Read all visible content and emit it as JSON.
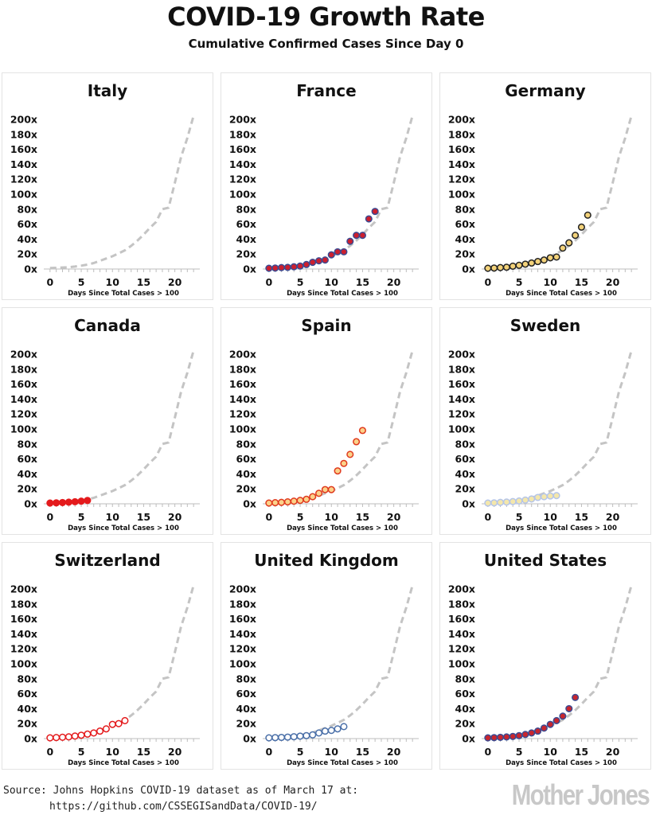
{
  "title": "COVID-19 Growth Rate",
  "subtitle": "Cumulative Confirmed Cases Since Day 0",
  "source": {
    "line1": "Source: Johns Hopkins COVID-19 dataset as of March 17 at:",
    "line2": "https://github.com/CSSEGISandData/COVID-19/"
  },
  "brand": "Mother Jones",
  "chart_data": {
    "type": "scatter",
    "xlabel": "Days Since Total Cases > 100",
    "xlim": [
      -1,
      24
    ],
    "ylim": [
      0,
      200
    ],
    "xticks": [
      0,
      5,
      10,
      15,
      20
    ],
    "yticks": [
      "0x",
      "20x",
      "40x",
      "60x",
      "80x",
      "100x",
      "120x",
      "140x",
      "160x",
      "180x",
      "200x"
    ],
    "reference_line": {
      "style": "dashed",
      "color": "#c4c4c4",
      "x": [
        0,
        1,
        2,
        3,
        4,
        5,
        6,
        7,
        8,
        9,
        10,
        11,
        12,
        13,
        14,
        15,
        16,
        17,
        18,
        19,
        20,
        21,
        22,
        23
      ],
      "y": [
        1.3,
        1.6,
        2,
        2.5,
        3.3,
        4.5,
        6,
        8,
        11,
        14,
        17,
        21,
        25,
        31,
        38,
        46,
        55,
        63,
        80,
        82,
        115,
        150,
        175,
        205
      ]
    },
    "panels": [
      {
        "name": "Italy",
        "marker_fill": "#ffffff",
        "marker_stroke": "#ffffff",
        "x": [],
        "y": []
      },
      {
        "name": "France",
        "marker_fill": "#cc1f2e",
        "marker_stroke": "#3d4a91",
        "x": [
          0,
          1,
          2,
          3,
          4,
          5,
          6,
          7,
          8,
          9,
          10,
          11,
          12,
          13,
          14,
          15,
          16,
          17
        ],
        "y": [
          1,
          1.3,
          1.9,
          2.2,
          3,
          4,
          6,
          9,
          11,
          12,
          19,
          23,
          23,
          37,
          45,
          45,
          67,
          77
        ]
      },
      {
        "name": "Germany",
        "marker_fill": "#f3d27a",
        "marker_stroke": "#222222",
        "x": [
          0,
          1,
          2,
          3,
          4,
          5,
          6,
          7,
          8,
          9,
          10,
          11,
          12,
          13,
          14,
          15,
          16
        ],
        "y": [
          1,
          1.3,
          1.9,
          2.4,
          3.8,
          5,
          6.5,
          8,
          10,
          12,
          15,
          16,
          28,
          35,
          45,
          56,
          72
        ]
      },
      {
        "name": "Canada",
        "marker_fill": "#e41a1c",
        "marker_stroke": "#e41a1c",
        "x": [
          0,
          1,
          2,
          3,
          4,
          5,
          6
        ],
        "y": [
          1,
          1.3,
          1.7,
          2.2,
          2.8,
          3.5,
          4.5
        ]
      },
      {
        "name": "Spain",
        "marker_fill": "#fbd28a",
        "marker_stroke": "#e03a1e",
        "x": [
          0,
          1,
          2,
          3,
          4,
          5,
          6,
          7,
          8,
          9,
          10,
          11,
          12,
          13,
          14,
          15
        ],
        "y": [
          1,
          1.5,
          1.9,
          2.6,
          3.5,
          4.6,
          6,
          9.5,
          14,
          19,
          19,
          44,
          54,
          66,
          83,
          98
        ]
      },
      {
        "name": "Sweden",
        "marker_fill": "#f4e7ab",
        "marker_stroke": "#b5c5e8",
        "x": [
          0,
          1,
          2,
          3,
          4,
          5,
          6,
          7,
          8,
          9,
          10,
          11
        ],
        "y": [
          1,
          1.3,
          1.9,
          2.3,
          3,
          3.8,
          5,
          6.5,
          8.5,
          9.5,
          10.5,
          11
        ]
      },
      {
        "name": "Switzerland",
        "marker_fill": "#ffffff",
        "marker_stroke": "#e41a1c",
        "x": [
          0,
          1,
          2,
          3,
          4,
          5,
          6,
          7,
          8,
          9,
          10,
          11,
          12
        ],
        "y": [
          1,
          1.4,
          1.8,
          2.3,
          3.4,
          4.5,
          6,
          7.5,
          10,
          13,
          19,
          20,
          24
        ]
      },
      {
        "name": "United Kingdom",
        "marker_fill": "#ffffff",
        "marker_stroke": "#4a6fa8",
        "x": [
          0,
          1,
          2,
          3,
          4,
          5,
          6,
          7,
          8,
          9,
          10,
          11,
          12
        ],
        "y": [
          1,
          1.3,
          1.6,
          2,
          2.5,
          3.3,
          4,
          5,
          7.5,
          10,
          11,
          13,
          16
        ]
      },
      {
        "name": "United States",
        "marker_fill": "#c8262e",
        "marker_stroke": "#3d4a91",
        "x": [
          0,
          1,
          2,
          3,
          4,
          5,
          6,
          7,
          8,
          9,
          10,
          11,
          12,
          13,
          14
        ],
        "y": [
          1,
          1.3,
          1.7,
          2.2,
          2.9,
          4,
          5.5,
          7.5,
          10,
          14,
          19,
          24,
          30,
          40,
          55
        ]
      }
    ]
  }
}
